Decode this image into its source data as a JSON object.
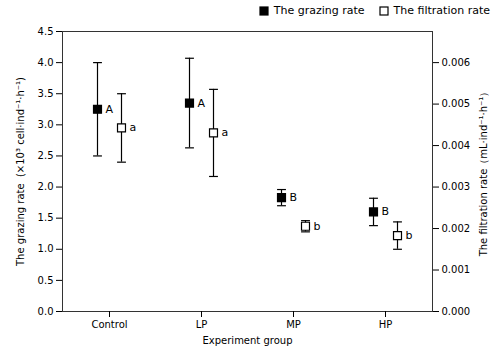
{
  "chart_data": {
    "type": "scatter",
    "categories": [
      "Control",
      "LP",
      "MP",
      "HP"
    ],
    "xlabel": "Experiment group",
    "ylabel": "The grazing rate  (×10³ cell·ind⁻¹·h⁻¹)",
    "y2label": "The filtration rate（mL·ind⁻¹·h⁻¹）",
    "ylim": [
      0.0,
      4.5
    ],
    "yticks": [
      {
        "value": 0.0,
        "label": "0.0"
      },
      {
        "value": 0.5,
        "label": "0.5"
      },
      {
        "value": 1.0,
        "label": "1.0"
      },
      {
        "value": 1.5,
        "label": "1.5"
      },
      {
        "value": 2.0,
        "label": "2.0"
      },
      {
        "value": 2.5,
        "label": "2.5"
      },
      {
        "value": 3.0,
        "label": "3.0"
      },
      {
        "value": 3.5,
        "label": "3.5"
      },
      {
        "value": 4.0,
        "label": "4.0"
      },
      {
        "value": 4.5,
        "label": "4.5"
      }
    ],
    "y2lim": [
      0.0,
      0.00675
    ],
    "y2ticks": [
      {
        "value": 0.0,
        "label": "0.000"
      },
      {
        "value": 0.001,
        "label": "0.001"
      },
      {
        "value": 0.002,
        "label": "0.002"
      },
      {
        "value": 0.003,
        "label": "0.003"
      },
      {
        "value": 0.004,
        "label": "0.004"
      },
      {
        "value": 0.005,
        "label": "0.005"
      },
      {
        "value": 0.006,
        "label": "0.006"
      }
    ],
    "grid": false,
    "legend": "upper right",
    "series": [
      {
        "name": "The grazing rate",
        "color": "black",
        "marker": "square",
        "values": [
          3.25,
          3.35,
          1.83,
          1.6
        ],
        "errors": [
          0.75,
          0.72,
          0.13,
          0.22
        ],
        "annotations": [
          "A",
          "A",
          "B",
          "B"
        ]
      },
      {
        "name": "The filtration rate",
        "color": "black",
        "marker": "square-open",
        "values": [
          2.95,
          2.87,
          1.37,
          1.22
        ],
        "errors": [
          0.55,
          0.7,
          0.09,
          0.22
        ],
        "annotations": [
          "a",
          "a",
          "b",
          "b"
        ]
      }
    ]
  }
}
